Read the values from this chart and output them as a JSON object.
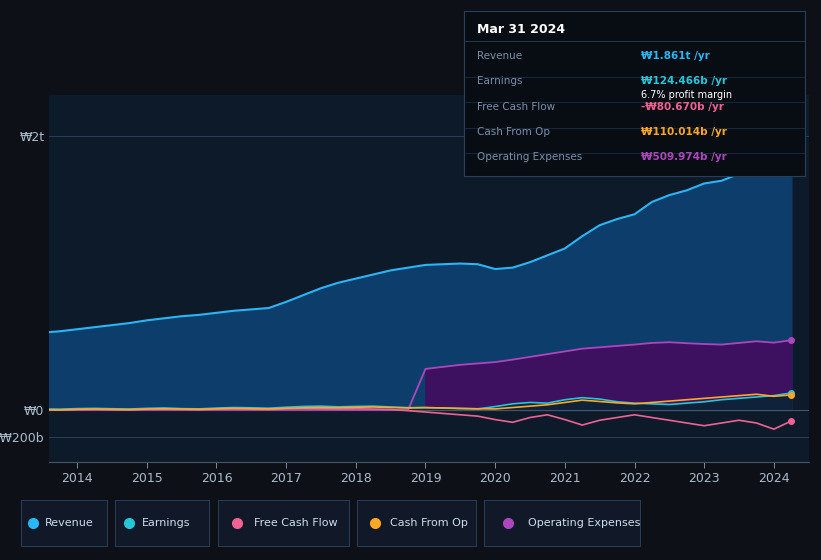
{
  "bg_color": "#0d1117",
  "plot_bg_color": "#0d1a2a",
  "grid_color": "#2a3f5a",
  "text_color": "#8899aa",
  "ytick_labels": [
    "₩2t",
    "₩0",
    "-₩200b"
  ],
  "ytick_values": [
    2000000000000,
    0,
    -200000000000
  ],
  "ylim_min": -380000000000,
  "ylim_max": 2300000000000,
  "years": [
    2013.0,
    2013.25,
    2013.5,
    2013.75,
    2014.0,
    2014.25,
    2014.5,
    2014.75,
    2015.0,
    2015.25,
    2015.5,
    2015.75,
    2016.0,
    2016.25,
    2016.5,
    2016.75,
    2017.0,
    2017.25,
    2017.5,
    2017.75,
    2018.0,
    2018.25,
    2018.5,
    2018.75,
    2019.0,
    2019.25,
    2019.5,
    2019.75,
    2020.0,
    2020.25,
    2020.5,
    2020.75,
    2021.0,
    2021.25,
    2021.5,
    2021.75,
    2022.0,
    2022.25,
    2022.5,
    2022.75,
    2023.0,
    2023.25,
    2023.5,
    2023.75,
    2024.0,
    2024.25
  ],
  "revenue": [
    540000000000.0,
    555000000000.0,
    565000000000.0,
    575000000000.0,
    590000000000.0,
    605000000000.0,
    620000000000.0,
    635000000000.0,
    655000000000.0,
    670000000000.0,
    685000000000.0,
    695000000000.0,
    710000000000.0,
    725000000000.0,
    735000000000.0,
    745000000000.0,
    790000000000.0,
    840000000000.0,
    890000000000.0,
    930000000000.0,
    960000000000.0,
    990000000000.0,
    1020000000000.0,
    1040000000000.0,
    1060000000000.0,
    1065000000000.0,
    1070000000000.0,
    1065000000000.0,
    1030000000000.0,
    1040000000000.0,
    1080000000000.0,
    1130000000000.0,
    1180000000000.0,
    1270000000000.0,
    1350000000000.0,
    1395000000000.0,
    1430000000000.0,
    1520000000000.0,
    1570000000000.0,
    1605000000000.0,
    1655000000000.0,
    1675000000000.0,
    1725000000000.0,
    1780000000000.0,
    1820000000000.0,
    1861000000000.0
  ],
  "earnings": [
    8000000000.0,
    10000000000.0,
    8000000000.0,
    6000000000.0,
    10000000000.0,
    12000000000.0,
    9000000000.0,
    7000000000.0,
    12000000000.0,
    15000000000.0,
    10000000000.0,
    8000000000.0,
    14000000000.0,
    18000000000.0,
    16000000000.0,
    13000000000.0,
    20000000000.0,
    26000000000.0,
    28000000000.0,
    23000000000.0,
    26000000000.0,
    28000000000.0,
    22000000000.0,
    17000000000.0,
    18000000000.0,
    14000000000.0,
    10000000000.0,
    8000000000.0,
    25000000000.0,
    45000000000.0,
    55000000000.0,
    50000000000.0,
    75000000000.0,
    90000000000.0,
    80000000000.0,
    60000000000.0,
    50000000000.0,
    45000000000.0,
    40000000000.0,
    50000000000.0,
    60000000000.0,
    75000000000.0,
    85000000000.0,
    95000000000.0,
    105000000000.0,
    124466000000.0
  ],
  "free_cash_flow": [
    3000000000.0,
    2000000000.0,
    1000000000.0,
    0,
    3000000000.0,
    4000000000.0,
    2000000000.0,
    1000000000.0,
    5000000000.0,
    6000000000.0,
    4000000000.0,
    2000000000.0,
    6000000000.0,
    8000000000.0,
    6000000000.0,
    4000000000.0,
    9000000000.0,
    11000000000.0,
    9000000000.0,
    7000000000.0,
    9000000000.0,
    7000000000.0,
    4000000000.0,
    -5000000000.0,
    -15000000000.0,
    -25000000000.0,
    -35000000000.0,
    -45000000000.0,
    -70000000000.0,
    -90000000000.0,
    -55000000000.0,
    -35000000000.0,
    -70000000000.0,
    -110000000000.0,
    -75000000000.0,
    -55000000000.0,
    -35000000000.0,
    -55000000000.0,
    -75000000000.0,
    -95000000000.0,
    -115000000000.0,
    -95000000000.0,
    -75000000000.0,
    -95000000000.0,
    -140000000000.0,
    -80670000000.0
  ],
  "cash_from_op": [
    4000000000.0,
    3000000000.0,
    2000000000.0,
    1000000000.0,
    5000000000.0,
    7000000000.0,
    5000000000.0,
    3000000000.0,
    7000000000.0,
    9000000000.0,
    7000000000.0,
    5000000000.0,
    9000000000.0,
    12000000000.0,
    10000000000.0,
    8000000000.0,
    13000000000.0,
    16000000000.0,
    18000000000.0,
    16000000000.0,
    20000000000.0,
    22000000000.0,
    18000000000.0,
    15000000000.0,
    17000000000.0,
    15000000000.0,
    12000000000.0,
    9000000000.0,
    8000000000.0,
    18000000000.0,
    28000000000.0,
    38000000000.0,
    55000000000.0,
    72000000000.0,
    62000000000.0,
    52000000000.0,
    45000000000.0,
    55000000000.0,
    65000000000.0,
    75000000000.0,
    85000000000.0,
    95000000000.0,
    105000000000.0,
    115000000000.0,
    100000000000.0,
    110014000000.0
  ],
  "operating_expenses": [
    0,
    0,
    0,
    0,
    0,
    0,
    0,
    0,
    0,
    0,
    0,
    0,
    0,
    0,
    0,
    0,
    0,
    0,
    0,
    0,
    0,
    0,
    0,
    0,
    300000000000.0,
    315000000000.0,
    330000000000.0,
    340000000000.0,
    350000000000.0,
    368000000000.0,
    388000000000.0,
    408000000000.0,
    428000000000.0,
    448000000000.0,
    458000000000.0,
    468000000000.0,
    478000000000.0,
    490000000000.0,
    495000000000.0,
    488000000000.0,
    482000000000.0,
    478000000000.0,
    490000000000.0,
    502000000000.0,
    492000000000.0,
    509974000000.0
  ],
  "revenue_color": "#29b6f6",
  "revenue_fill": "#0d3d6b",
  "earnings_color": "#26c6da",
  "free_cash_flow_color": "#f06292",
  "cash_from_op_color": "#ffa726",
  "operating_expenses_color": "#ab47bc",
  "operating_expenses_fill": "#3d1060",
  "xlim_start": 2013.6,
  "xlim_end": 2024.5,
  "xtick_years": [
    2014,
    2015,
    2016,
    2017,
    2018,
    2019,
    2020,
    2021,
    2022,
    2023,
    2024
  ],
  "info_rows": [
    {
      "label": "Revenue",
      "value": "₩1.861t /yr",
      "color": "#29b6f6"
    },
    {
      "label": "Earnings",
      "value": "₩124.466b /yr",
      "color": "#26c6da"
    },
    {
      "label": "Free Cash Flow",
      "value": "-₩80.670b /yr",
      "color": "#f06292"
    },
    {
      "label": "Cash From Op",
      "value": "₩110.014b /yr",
      "color": "#ffa726"
    },
    {
      "label": "Operating Expenses",
      "value": "₩509.974b /yr",
      "color": "#ab47bc"
    }
  ],
  "legend_items": [
    {
      "label": "Revenue",
      "color": "#29b6f6"
    },
    {
      "label": "Earnings",
      "color": "#26c6da"
    },
    {
      "label": "Free Cash Flow",
      "color": "#f06292"
    },
    {
      "label": "Cash From Op",
      "color": "#ffa726"
    },
    {
      "label": "Operating Expenses",
      "color": "#ab47bc"
    }
  ]
}
